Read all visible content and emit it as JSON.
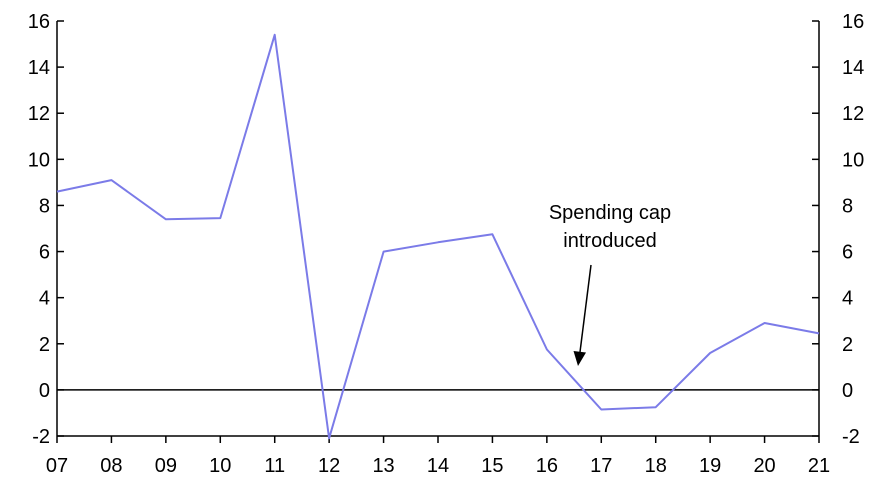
{
  "chart_data": {
    "type": "line",
    "x": [
      "07",
      "08",
      "09",
      "10",
      "11",
      "12",
      "13",
      "14",
      "15",
      "16",
      "17",
      "18",
      "19",
      "20",
      "21"
    ],
    "series": [
      {
        "values": [
          8.6,
          9.1,
          7.4,
          7.45,
          15.4,
          -2.1,
          6.0,
          6.4,
          6.75,
          1.75,
          -0.85,
          -0.75,
          1.6,
          2.9,
          2.45
        ],
        "color": "#7b7be8"
      }
    ],
    "ylim": [
      -2,
      16
    ],
    "yticks": [
      "-2",
      "0",
      "2",
      "4",
      "6",
      "8",
      "10",
      "12",
      "14",
      "16"
    ],
    "y_axes": "both sides, same scale",
    "zero_line": true,
    "grid": false,
    "annotation": {
      "lines": [
        "Spending cap",
        "introduced"
      ],
      "points_to_x": "17",
      "points_to_y": 1.0
    }
  }
}
